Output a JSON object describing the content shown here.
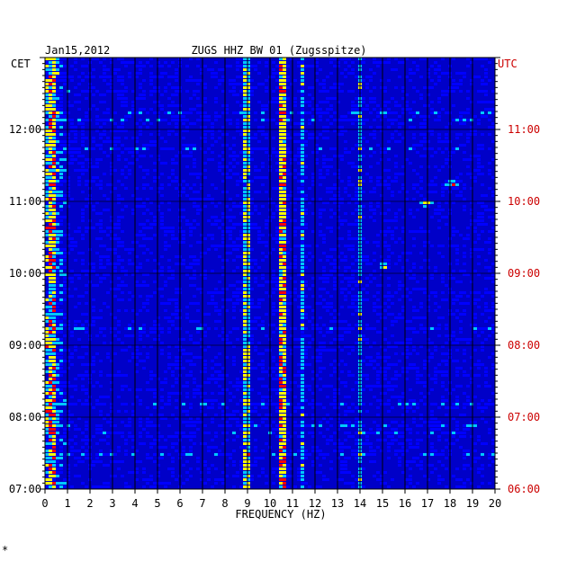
{
  "chart_data": {
    "type": "heatmap",
    "title": "ZUGS HHZ BW 01 (Zugsspitze)",
    "date": "Jan15,2012",
    "left_timezone": "CET",
    "right_timezone": "UTC",
    "xlabel": "FREQUENCY (HZ)",
    "xlim": [
      0,
      20
    ],
    "x_ticks": [
      "0",
      "1",
      "2",
      "3",
      "4",
      "5",
      "6",
      "7",
      "8",
      "9",
      "10",
      "11",
      "12",
      "13",
      "14",
      "15",
      "16",
      "17",
      "18",
      "19",
      "20"
    ],
    "y_ticks_left": [
      {
        "value": 12,
        "label": "12:00"
      },
      {
        "value": 11,
        "label": "11:00"
      },
      {
        "value": 10,
        "label": "10:00"
      },
      {
        "value": 9,
        "label": "09:00"
      },
      {
        "value": 8,
        "label": "08:00"
      },
      {
        "value": 7,
        "label": "07:00"
      }
    ],
    "y_ticks_right": [
      {
        "value": 12,
        "label": "11:00"
      },
      {
        "value": 11,
        "label": "10:00"
      },
      {
        "value": 10,
        "label": "09:00"
      },
      {
        "value": 9,
        "label": "08:00"
      },
      {
        "value": 8,
        "label": "07:00"
      },
      {
        "value": 7,
        "label": "06:00"
      }
    ],
    "ylim": [
      7,
      13
    ],
    "grid": true,
    "colormap": [
      "#00008b",
      "#0000ff",
      "#00c8ff",
      "#ffff00",
      "#ff0000"
    ],
    "persistent_lines_hz": [
      0.3,
      9.0,
      10.6,
      11.4,
      14.0
    ],
    "events": [
      {
        "x": 15.1,
        "y": 10.1
      },
      {
        "x": 16.9,
        "y": 10.97
      },
      {
        "x": 18.1,
        "y": 11.24
      }
    ]
  },
  "footer_mark": "*"
}
